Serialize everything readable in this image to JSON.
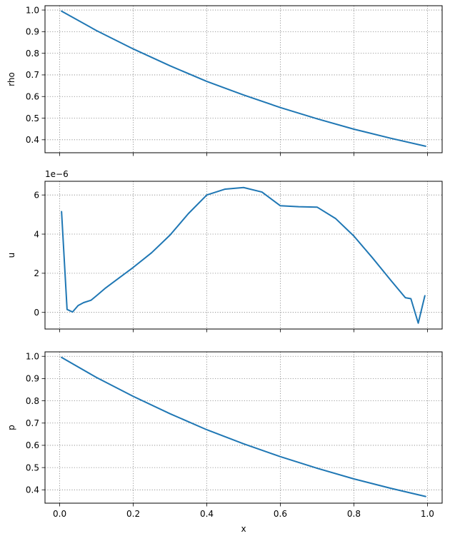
{
  "chart_data": [
    {
      "type": "line",
      "ylabel": "rho",
      "xlabel": "",
      "xlim": [
        -0.04,
        1.04
      ],
      "ylim": [
        0.34,
        1.02
      ],
      "xticks": [
        0.0,
        0.2,
        0.4,
        0.6,
        0.8,
        1.0
      ],
      "yticks": [
        0.4,
        0.5,
        0.6,
        0.7,
        0.8,
        0.9,
        1.0
      ],
      "ytick_labels": [
        "0.4",
        "0.5",
        "0.6",
        "0.7",
        "0.8",
        "0.9",
        "1.0"
      ],
      "xtick_labels_visible": false,
      "offset_text": "",
      "grid": true,
      "series": [
        {
          "color": "#1f77b4",
          "x": [
            0.005,
            0.1,
            0.2,
            0.3,
            0.4,
            0.5,
            0.6,
            0.7,
            0.8,
            0.9,
            0.995
          ],
          "y": [
            0.995,
            0.905,
            0.82,
            0.742,
            0.67,
            0.607,
            0.549,
            0.497,
            0.449,
            0.407,
            0.37
          ]
        }
      ]
    },
    {
      "type": "line",
      "ylabel": "u",
      "xlabel": "",
      "xlim": [
        -0.04,
        1.04
      ],
      "ylim": [
        -0.85,
        6.7
      ],
      "xticks": [
        0.0,
        0.2,
        0.4,
        0.6,
        0.8,
        1.0
      ],
      "yticks": [
        0,
        2,
        4,
        6
      ],
      "ytick_labels": [
        "0",
        "2",
        "4",
        "6"
      ],
      "xtick_labels_visible": false,
      "offset_text": "1e−6",
      "grid": true,
      "series": [
        {
          "color": "#1f77b4",
          "x": [
            0.005,
            0.02,
            0.035,
            0.05,
            0.065,
            0.085,
            0.1,
            0.125,
            0.15,
            0.2,
            0.25,
            0.3,
            0.35,
            0.4,
            0.45,
            0.5,
            0.55,
            0.6,
            0.65,
            0.7,
            0.75,
            0.8,
            0.85,
            0.9,
            0.94,
            0.955,
            0.975,
            0.993
          ],
          "y": [
            5.15,
            0.15,
            0.02,
            0.35,
            0.5,
            0.62,
            0.85,
            1.25,
            1.6,
            2.3,
            3.05,
            3.95,
            5.05,
            6.0,
            6.3,
            6.38,
            6.15,
            5.45,
            5.4,
            5.38,
            4.8,
            3.9,
            2.8,
            1.65,
            0.75,
            0.7,
            -0.55,
            0.85
          ]
        }
      ]
    },
    {
      "type": "line",
      "ylabel": "p",
      "xlabel": "x",
      "xlim": [
        -0.04,
        1.04
      ],
      "ylim": [
        0.34,
        1.02
      ],
      "xticks": [
        0.0,
        0.2,
        0.4,
        0.6,
        0.8,
        1.0
      ],
      "xtick_labels": [
        "0.0",
        "0.2",
        "0.4",
        "0.6",
        "0.8",
        "1.0"
      ],
      "yticks": [
        0.4,
        0.5,
        0.6,
        0.7,
        0.8,
        0.9,
        1.0
      ],
      "ytick_labels": [
        "0.4",
        "0.5",
        "0.6",
        "0.7",
        "0.8",
        "0.9",
        "1.0"
      ],
      "xtick_labels_visible": true,
      "offset_text": "",
      "grid": true,
      "series": [
        {
          "color": "#1f77b4",
          "x": [
            0.005,
            0.1,
            0.2,
            0.3,
            0.4,
            0.5,
            0.6,
            0.7,
            0.8,
            0.9,
            0.995
          ],
          "y": [
            0.995,
            0.905,
            0.82,
            0.742,
            0.67,
            0.607,
            0.549,
            0.497,
            0.449,
            0.407,
            0.37
          ]
        }
      ]
    }
  ]
}
